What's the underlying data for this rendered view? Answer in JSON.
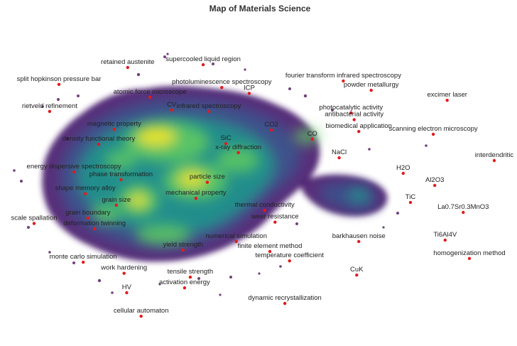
{
  "chart_data": {
    "type": "scatter",
    "title": "Map of Materials Science",
    "xlabel": "",
    "ylabel": "",
    "xlim": [
      0,
      100
    ],
    "ylim": [
      0,
      100
    ],
    "grid": false,
    "legend": "none",
    "colors": {
      "point": "#e31a1c",
      "density_low": "#440154",
      "density_mid_low": "#3b528b",
      "density_mid": "#21918c",
      "density_mid_high": "#5ec962",
      "density_high": "#fde725",
      "background": "#ffffff"
    },
    "points": [
      {
        "label": "supercooled liquid region",
        "x": 39.3,
        "y": 81.3
      },
      {
        "label": "retained austenite",
        "x": 24.7,
        "y": 80.5
      },
      {
        "label": "split hopkinson pressure bar",
        "x": 11.4,
        "y": 75.6
      },
      {
        "label": "photoluminescence spectroscopy",
        "x": 42.9,
        "y": 74.7
      },
      {
        "label": "fourier transform infrared spectroscopy",
        "x": 66.4,
        "y": 76.6
      },
      {
        "label": "powder metallurgy",
        "x": 71.8,
        "y": 73.9
      },
      {
        "label": "atomic force microscope",
        "x": 29.0,
        "y": 71.9
      },
      {
        "label": "ICP",
        "x": 48.2,
        "y": 73.0
      },
      {
        "label": "excimer laser",
        "x": 86.5,
        "y": 71.0
      },
      {
        "label": "rietveld refinement",
        "x": 9.6,
        "y": 67.8
      },
      {
        "label": "CV",
        "x": 33.2,
        "y": 68.2
      },
      {
        "label": "infrared spectroscopy",
        "x": 40.4,
        "y": 67.8
      },
      {
        "label": "photocatalytic activity",
        "x": 67.9,
        "y": 67.4
      },
      {
        "label": "antibacterial activity",
        "x": 68.5,
        "y": 65.4
      },
      {
        "label": "magnetic property",
        "x": 22.1,
        "y": 62.6
      },
      {
        "label": "CO2",
        "x": 52.5,
        "y": 62.4
      },
      {
        "label": "biomedical application",
        "x": 69.4,
        "y": 62.0
      },
      {
        "label": "scanning electron microscopy",
        "x": 83.8,
        "y": 61.2
      },
      {
        "label": "density functional theory",
        "x": 19.1,
        "y": 58.3
      },
      {
        "label": "SiC",
        "x": 43.7,
        "y": 58.5
      },
      {
        "label": "CO",
        "x": 60.4,
        "y": 59.8
      },
      {
        "label": "x-ray diffraction",
        "x": 46.1,
        "y": 55.9
      },
      {
        "label": "NaCl",
        "x": 65.6,
        "y": 54.4
      },
      {
        "label": "interdendritic",
        "x": 95.6,
        "y": 53.6
      },
      {
        "label": "energy dispersive spectroscopy",
        "x": 14.3,
        "y": 50.3
      },
      {
        "label": "H2O",
        "x": 78.0,
        "y": 49.9
      },
      {
        "label": "phase transformation",
        "x": 23.4,
        "y": 48.1
      },
      {
        "label": "particle size",
        "x": 40.1,
        "y": 47.3
      },
      {
        "label": "Al2O3",
        "x": 84.1,
        "y": 46.4
      },
      {
        "label": "shape memory alloy",
        "x": 16.5,
        "y": 44.0
      },
      {
        "label": "TiC",
        "x": 79.4,
        "y": 41.5
      },
      {
        "label": "mechanical property",
        "x": 37.9,
        "y": 42.7
      },
      {
        "label": "grain size",
        "x": 22.5,
        "y": 40.7
      },
      {
        "label": "thermal conductivity",
        "x": 51.2,
        "y": 39.2
      },
      {
        "label": "La0.7Sr0.3MnO3",
        "x": 89.6,
        "y": 38.6
      },
      {
        "label": "scale spallation",
        "x": 6.6,
        "y": 35.4
      },
      {
        "label": "grain boundary",
        "x": 17.0,
        "y": 37.0
      },
      {
        "label": "wear resistance",
        "x": 53.2,
        "y": 35.8
      },
      {
        "label": "deformation twinning",
        "x": 18.3,
        "y": 33.9
      },
      {
        "label": "Ti6Al4V",
        "x": 86.1,
        "y": 30.6
      },
      {
        "label": "numerical simulation",
        "x": 45.7,
        "y": 30.2
      },
      {
        "label": "barkhausen noise",
        "x": 69.4,
        "y": 30.2
      },
      {
        "label": "yield strength",
        "x": 35.4,
        "y": 27.7
      },
      {
        "label": "finite element method",
        "x": 52.2,
        "y": 27.3
      },
      {
        "label": "homogenization method",
        "x": 90.8,
        "y": 25.3
      },
      {
        "label": "temperature coefficient",
        "x": 56.0,
        "y": 24.6
      },
      {
        "label": "monte carlo simulation",
        "x": 16.1,
        "y": 24.2
      },
      {
        "label": "tensile strength",
        "x": 36.8,
        "y": 19.9
      },
      {
        "label": "work hardening",
        "x": 24.0,
        "y": 21.0
      },
      {
        "label": "CuK",
        "x": 69.0,
        "y": 20.5
      },
      {
        "label": "activation energy",
        "x": 35.7,
        "y": 16.8
      },
      {
        "label": "HV",
        "x": 24.5,
        "y": 15.4
      },
      {
        "label": "dynamic recrystallization",
        "x": 55.1,
        "y": 12.3
      },
      {
        "label": "cellular automaton",
        "x": 27.3,
        "y": 8.6
      }
    ]
  }
}
